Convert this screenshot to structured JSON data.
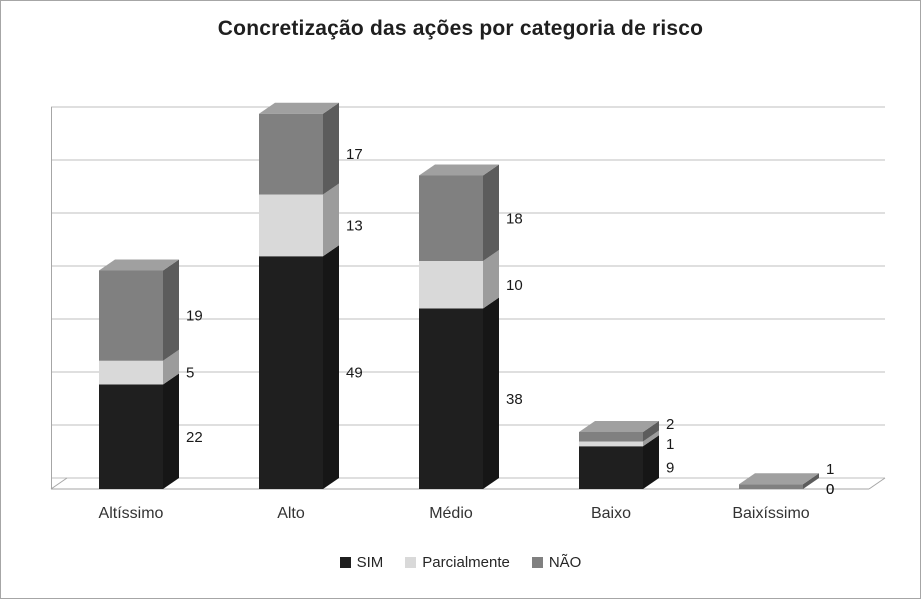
{
  "chart_data": {
    "type": "bar",
    "subtype": "stacked-column-3d",
    "title": "Concretização das ações por categoria de risco",
    "categories": [
      "Altíssimo",
      "Alto",
      "Médio",
      "Baixo",
      "Baixíssimo"
    ],
    "series": [
      {
        "name": "SIM",
        "color": "#1f1f1f",
        "values": [
          22,
          49,
          38,
          9,
          0
        ]
      },
      {
        "name": "Parcialmente",
        "color": "#d9d9d9",
        "values": [
          5,
          13,
          10,
          1,
          0
        ]
      },
      {
        "name": "NÃO",
        "color": "#808080",
        "values": [
          19,
          17,
          18,
          2,
          1
        ]
      }
    ],
    "totals": [
      46,
      79,
      66,
      12,
      1
    ],
    "data_labels": true,
    "grid": true,
    "ylim": [
      0,
      80
    ],
    "legend_position": "bottom",
    "xlabel": "",
    "ylabel": ""
  },
  "colors": {
    "grid": "#bfbfbf",
    "axis": "#a6a6a6",
    "label_text": "#1a1a1a",
    "category_text": "#333333",
    "frame_border": "#a6a6a6"
  }
}
